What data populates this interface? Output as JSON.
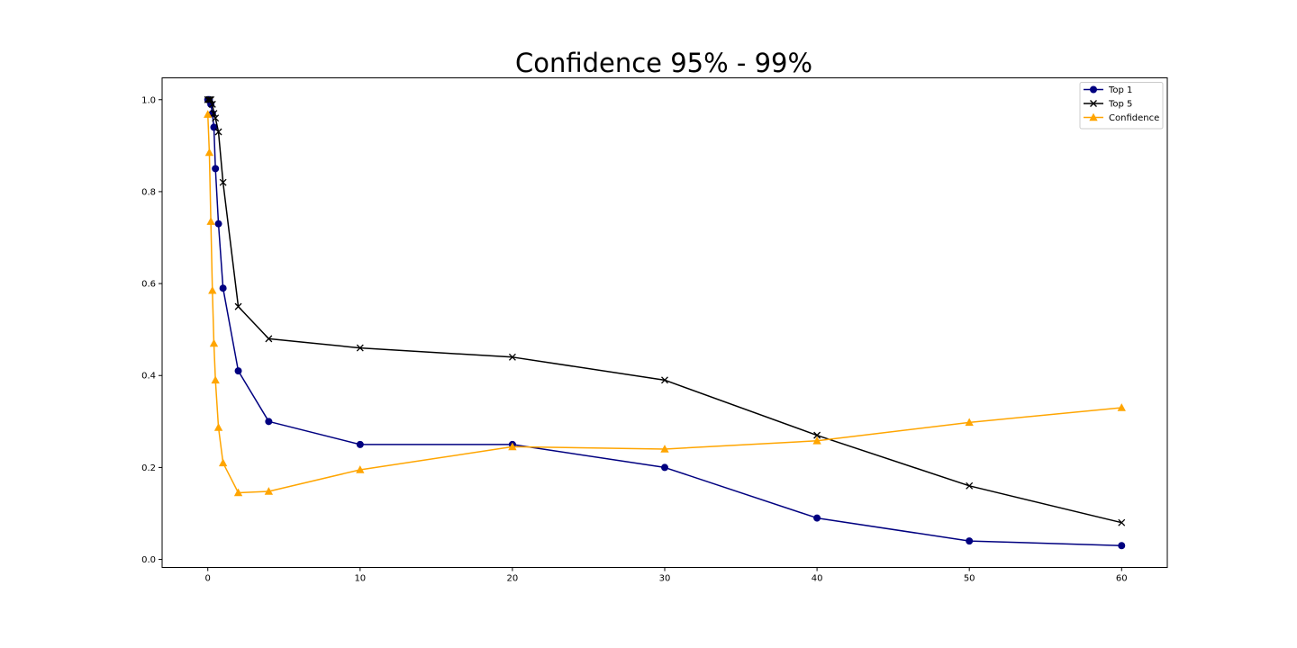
{
  "chart_data": {
    "type": "line",
    "title": "Confidence 95% - 99%",
    "xlabel": "",
    "ylabel": "",
    "xlim": [
      -3,
      63
    ],
    "ylim": [
      -0.0175,
      1.0475
    ],
    "xticks": [
      0,
      10,
      20,
      30,
      40,
      50,
      60
    ],
    "yticks": [
      0.0,
      0.2,
      0.4,
      0.6,
      0.8,
      1.0
    ],
    "xtick_labels": [
      "0",
      "10",
      "20",
      "30",
      "40",
      "50",
      "60"
    ],
    "ytick_labels": [
      "0.0",
      "0.2",
      "0.4",
      "0.6",
      "0.8",
      "1.0"
    ],
    "grid": false,
    "legend_position": "top-right",
    "series": [
      {
        "name": "Top 1",
        "color": "#000080",
        "marker": "circle",
        "x": [
          0,
          0.1,
          0.2,
          0.3,
          0.4,
          0.5,
          0.7,
          1,
          2,
          4,
          10,
          20,
          30,
          40,
          50,
          60
        ],
        "y": [
          1.0,
          1.0,
          0.99,
          0.97,
          0.94,
          0.85,
          0.73,
          0.59,
          0.41,
          0.3,
          0.25,
          0.25,
          0.2,
          0.09,
          0.04,
          0.03
        ]
      },
      {
        "name": "Top 5",
        "color": "#000000",
        "marker": "x",
        "x": [
          0,
          0.1,
          0.2,
          0.3,
          0.4,
          0.5,
          0.7,
          1,
          2,
          4,
          10,
          20,
          30,
          40,
          50,
          60
        ],
        "y": [
          1.0,
          1.0,
          1.0,
          0.99,
          0.97,
          0.96,
          0.93,
          0.82,
          0.55,
          0.48,
          0.46,
          0.44,
          0.39,
          0.27,
          0.16,
          0.08
        ]
      },
      {
        "name": "Confidence",
        "color": "#FFA500",
        "marker": "triangle",
        "x": [
          0,
          0.1,
          0.2,
          0.3,
          0.4,
          0.5,
          0.7,
          1,
          2,
          4,
          10,
          20,
          30,
          40,
          50,
          60
        ],
        "y": [
          0.968,
          0.885,
          0.735,
          0.585,
          0.47,
          0.39,
          0.287,
          0.21,
          0.145,
          0.148,
          0.195,
          0.245,
          0.24,
          0.258,
          0.298,
          0.33
        ]
      }
    ]
  }
}
